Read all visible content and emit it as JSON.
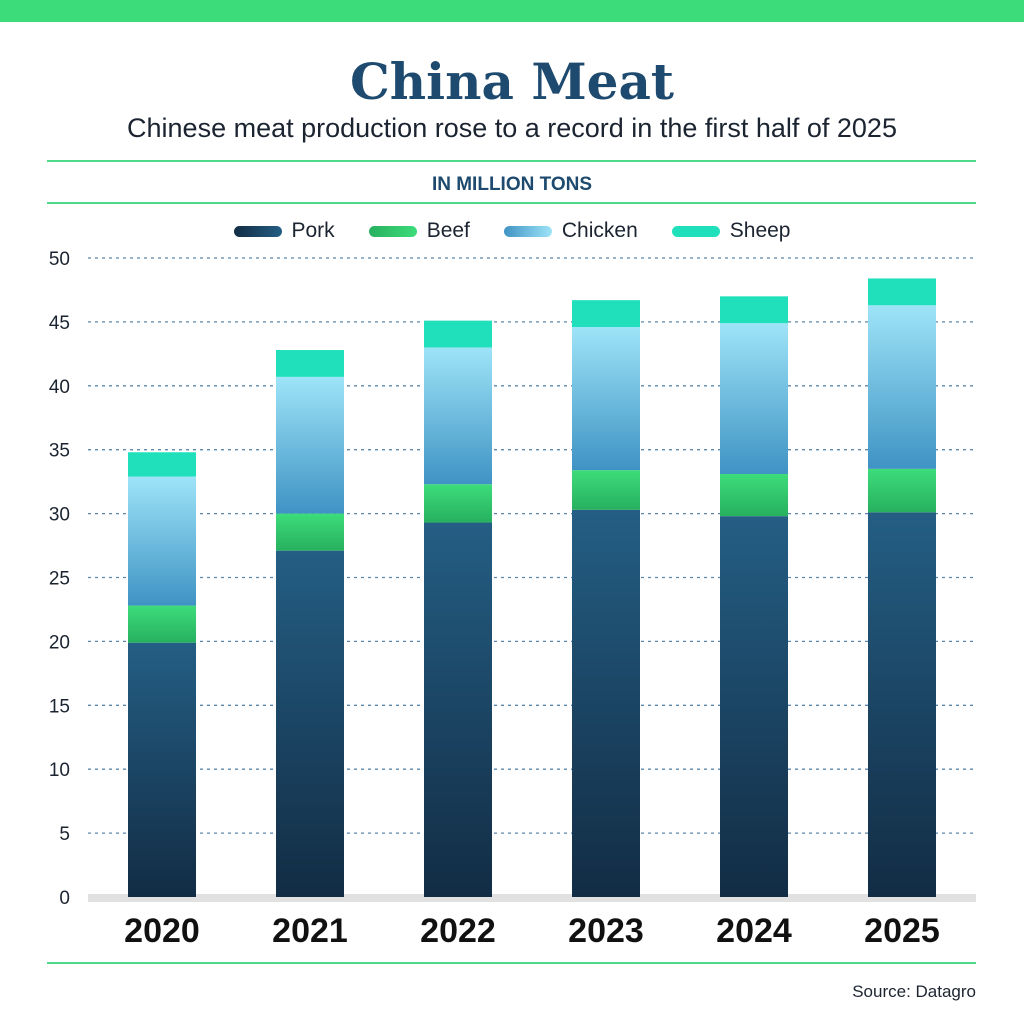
{
  "header": {
    "title": "China Meat",
    "subtitle": "Chinese meat production rose to a record in the first half of 2025",
    "units": "IN MILLION TONS"
  },
  "footer": {
    "source": "Source: Datagro"
  },
  "colors": {
    "accent": "#3ddc7a",
    "title": "#1d4a6e"
  },
  "chart_data": {
    "type": "bar",
    "stacked": true,
    "categories": [
      "2020",
      "2021",
      "2022",
      "2023",
      "2024",
      "2025"
    ],
    "series": [
      {
        "name": "Pork",
        "values": [
          19.9,
          27.1,
          29.3,
          30.3,
          29.8,
          30.1
        ],
        "color_top": "#245e84",
        "color_bottom": "#122c44"
      },
      {
        "name": "Beef",
        "values": [
          2.9,
          2.9,
          3.0,
          3.1,
          3.3,
          3.4
        ],
        "color_top": "#3ddc7a",
        "color_bottom": "#27b05f"
      },
      {
        "name": "Chicken",
        "values": [
          10.1,
          10.7,
          10.7,
          11.2,
          11.8,
          12.8
        ],
        "color_top": "#9ee4f8",
        "color_bottom": "#3f93c4"
      },
      {
        "name": "Sheep",
        "values": [
          1.9,
          2.1,
          2.1,
          2.1,
          2.1,
          2.1
        ],
        "color_top": "#20e0bc",
        "color_bottom": "#20e0bc"
      }
    ],
    "ylim": [
      0,
      50
    ],
    "yticks": [
      0,
      5,
      10,
      15,
      20,
      25,
      30,
      35,
      40,
      45,
      50
    ],
    "grid": true,
    "legend_position": "top-center"
  }
}
